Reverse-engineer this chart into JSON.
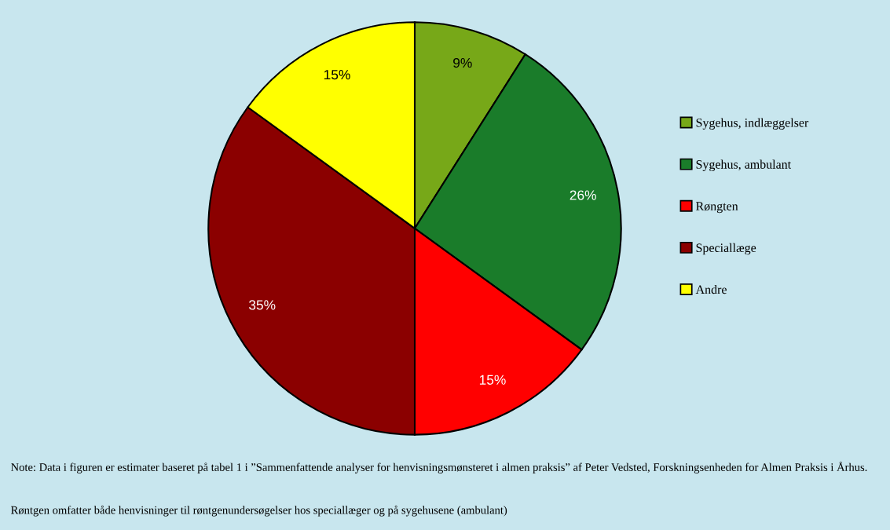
{
  "chart_data": {
    "type": "pie",
    "categories": [
      "Sygehus, indlæggelser",
      "Sygehus, ambulant",
      "Røngten",
      "Speciallæge",
      "Andre"
    ],
    "values": [
      9,
      26,
      15,
      35,
      15
    ],
    "value_labels": [
      "9%",
      "26%",
      "15%",
      "35%",
      "15%"
    ],
    "colors": [
      "#77a818",
      "#1a7c2a",
      "#ff0000",
      "#8b0000",
      "#ffff00"
    ],
    "legend": "right",
    "annotations": [
      "Note: Data i figuren er estimater baseret på tabel 1 i ”Sammenfattende analyser for henvisningsmønsteret i almen praksis” af Peter Vedsted, Forskningsenheden for Almen Praksis i Århus.",
      "Røntgen omfatter både henvisninger til røntgenundersøgelser hos speciallæger og på sygehusene (ambulant)"
    ]
  }
}
